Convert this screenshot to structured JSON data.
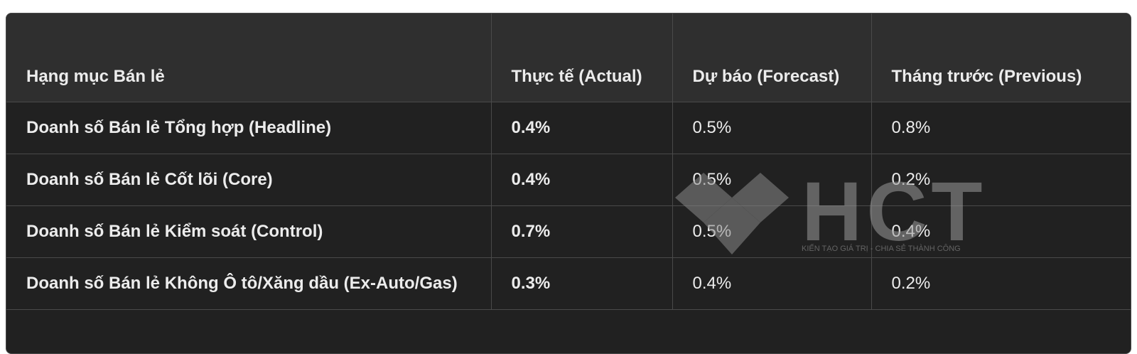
{
  "table": {
    "headers": [
      "Hạng mục Bán lẻ",
      "Thực tế (Actual)",
      "Dự báo (Forecast)",
      "Tháng trước (Previous)"
    ],
    "rows": [
      [
        "Doanh số Bán lẻ Tổng hợp (Headline)",
        "0.4%",
        "0.5%",
        "0.8%"
      ],
      [
        "Doanh số Bán lẻ Cốt lõi (Core)",
        "0.4%",
        "0.5%",
        "0.2%"
      ],
      [
        "Doanh số Bán lẻ Kiểm soát (Control)",
        "0.7%",
        "0.5%",
        "0.4%"
      ],
      [
        "Doanh số Bán lẻ Không Ô tô/Xăng dầu (Ex-Auto/Gas)",
        "0.3%",
        "0.4%",
        "0.2%"
      ]
    ]
  },
  "watermark": {
    "logo": "HCT",
    "tagline": "KIẾN TẠO GIÁ TRỊ - CHIA SẺ THÀNH CÔNG"
  }
}
